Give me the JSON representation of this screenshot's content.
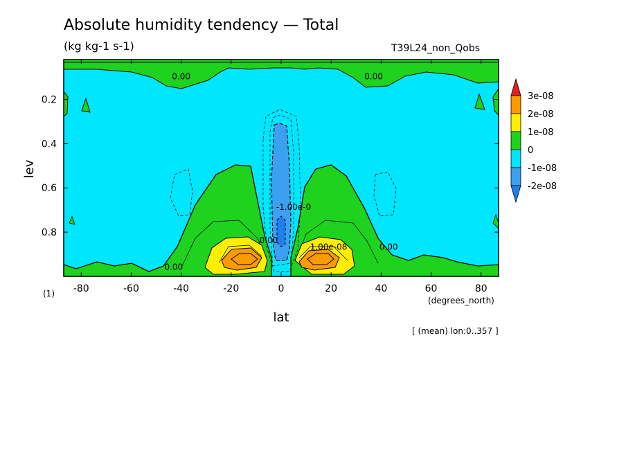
{
  "header": {
    "title": "Absolute humidity tendency — Total",
    "units": "(kg kg-1 s-1)",
    "run_label": "T39L24_non_Qobs"
  },
  "footer": {
    "mean_note": "[ (mean) lon:0..357 ]",
    "panel_index": "(1)"
  },
  "colors": {
    "lt_minus_2e8": "#1e80f0",
    "m2e8_to_m1e8": "#3ca0f0",
    "m1e8_to_0": "#00e6ff",
    "0_to_1e8": "#1ed21e",
    "1e8_to_2e8": "#ffee00",
    "2e8_to_3e8": "#fb9b00",
    "gt_3e8": "#e62020"
  },
  "chart_data": {
    "type": "heatmap",
    "title": "Absolute humidity tendency — Total",
    "subtitle": "(kg kg-1 s-1)",
    "xlabel": "lat",
    "xunits": "(degrees_north)",
    "ylabel": "lev",
    "xlim": [
      -87,
      87
    ],
    "ylim": [
      1.0,
      0.02
    ],
    "x_ticks": [
      -80,
      -60,
      -40,
      -20,
      0,
      20,
      40,
      60,
      80
    ],
    "x_tick_labels": [
      "-80",
      "-60",
      "-40",
      "-20",
      "0",
      "20",
      "40",
      "60",
      "80"
    ],
    "y_ticks": [
      0.2,
      0.4,
      0.6,
      0.8
    ],
    "y_tick_labels": [
      "0.2",
      "0.4",
      "0.6",
      "0.8"
    ],
    "colorbar": {
      "levels": [
        -2e-08,
        -1e-08,
        0,
        1e-08,
        2e-08,
        3e-08
      ],
      "labels": [
        "-2e-08",
        "-1e-08",
        "0",
        "1e-08",
        "2e-08",
        "3e-08"
      ],
      "colors": [
        "#1e80f0",
        "#3ca0f0",
        "#00e6ff",
        "#1ed21e",
        "#ffee00",
        "#fb9b00",
        "#e62020"
      ],
      "extend": "both"
    },
    "contour_labels": [
      {
        "text": "0.00",
        "lat": -40,
        "lev": 0.11
      },
      {
        "text": "0.00",
        "lat": 37,
        "lev": 0.11
      },
      {
        "text": "-1.00e-0",
        "lat": 5,
        "lev": 0.7
      },
      {
        "text": "0.00",
        "lat": -5,
        "lev": 0.85
      },
      {
        "text": "1.00e-08",
        "lat": 19,
        "lev": 0.88
      },
      {
        "text": "0.00",
        "lat": 43,
        "lev": 0.88
      },
      {
        "text": "0.00",
        "lat": -43,
        "lev": 0.97
      }
    ],
    "note": "[ (mean) lon:0..357 ]",
    "legend_placement": "right"
  }
}
